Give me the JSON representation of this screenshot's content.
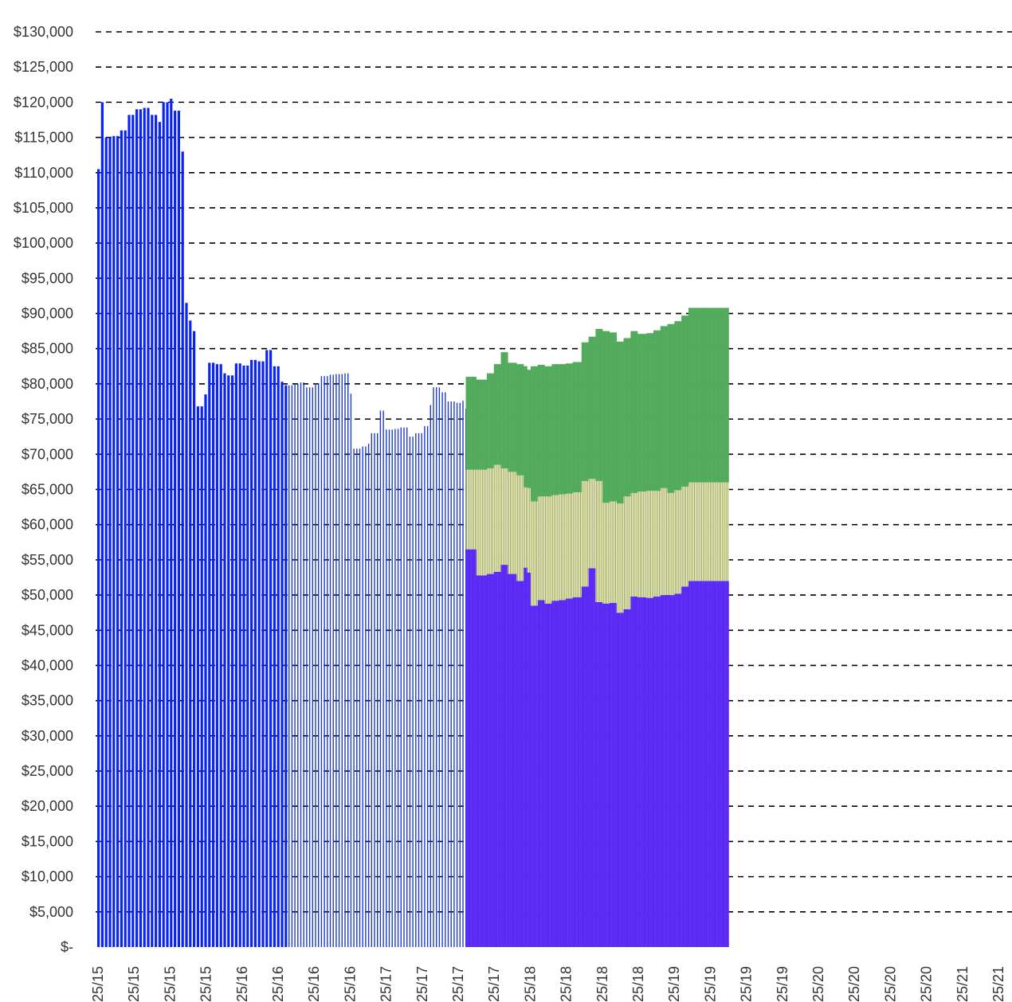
{
  "chart_data": {
    "type": "bar",
    "title": "",
    "xlabel": "",
    "ylabel": "",
    "ylim": [
      0,
      130000
    ],
    "y_ticks": [
      "$-",
      "$5,000",
      "$10,000",
      "$15,000",
      "$20,000",
      "$25,000",
      "$30,000",
      "$35,000",
      "$40,000",
      "$45,000",
      "$50,000",
      "$55,000",
      "$60,000",
      "$65,000",
      "$70,000",
      "$75,000",
      "$80,000",
      "$85,000",
      "$90,000",
      "$95,000",
      "$100,000",
      "$105,000",
      "$110,000",
      "$115,000",
      "$120,000",
      "$125,000",
      "$130,000"
    ],
    "x_ticks": [
      "25/15",
      "25/15",
      "25/15",
      "25/15",
      "25/16",
      "25/16",
      "25/16",
      "25/16",
      "25/17",
      "25/17",
      "25/17",
      "25/17",
      "25/18",
      "25/18",
      "25/18",
      "25/18",
      "25/19",
      "25/19",
      "25/19",
      "25/19",
      "25/20",
      "25/20",
      "25/20",
      "25/20",
      "25/21",
      "25/21",
      "25/21"
    ],
    "grid": "horizontal dashed",
    "colors": {
      "total_solid": "#0a24f5",
      "total_hatched": "#1f3cc8",
      "bottom": "#5b2bf5",
      "middle": "#8c9a3c",
      "middle_fill": "#f5f5dc",
      "top": "#52ab5c"
    },
    "total_series": [
      {
        "x": 0.0,
        "y": 110500
      },
      {
        "x": 0.1,
        "y": 120000
      },
      {
        "x": 0.15,
        "y": 114000
      },
      {
        "x": 0.2,
        "y": 115000
      },
      {
        "x": 0.4,
        "y": 115200
      },
      {
        "x": 0.6,
        "y": 116000
      },
      {
        "x": 0.8,
        "y": 118200
      },
      {
        "x": 1.0,
        "y": 119000
      },
      {
        "x": 1.2,
        "y": 119200
      },
      {
        "x": 1.4,
        "y": 118200
      },
      {
        "x": 1.6,
        "y": 117200
      },
      {
        "x": 1.8,
        "y": 120000
      },
      {
        "x": 2.0,
        "y": 120500
      },
      {
        "x": 2.1,
        "y": 118800
      },
      {
        "x": 2.3,
        "y": 113000
      },
      {
        "x": 2.35,
        "y": 91500
      },
      {
        "x": 2.45,
        "y": 89000
      },
      {
        "x": 2.6,
        "y": 87500
      },
      {
        "x": 2.7,
        "y": 76800
      },
      {
        "x": 2.9,
        "y": 78500
      },
      {
        "x": 3.0,
        "y": 83000
      },
      {
        "x": 3.2,
        "y": 82800
      },
      {
        "x": 3.4,
        "y": 81500
      },
      {
        "x": 3.6,
        "y": 81200
      },
      {
        "x": 3.8,
        "y": 82900
      },
      {
        "x": 4.0,
        "y": 82600
      },
      {
        "x": 4.2,
        "y": 83400
      },
      {
        "x": 4.4,
        "y": 83200
      },
      {
        "x": 4.6,
        "y": 84800
      },
      {
        "x": 4.8,
        "y": 82500
      },
      {
        "x": 5.0,
        "y": 80300
      },
      {
        "x": 5.2,
        "y": 79800
      },
      {
        "x": 5.4,
        "y": 80000
      },
      {
        "x": 5.6,
        "y": 80200
      },
      {
        "x": 5.8,
        "y": 79500
      },
      {
        "x": 6.0,
        "y": 80100
      },
      {
        "x": 6.2,
        "y": 81100
      },
      {
        "x": 6.4,
        "y": 81300
      },
      {
        "x": 6.6,
        "y": 81400
      },
      {
        "x": 6.8,
        "y": 81500
      },
      {
        "x": 7.0,
        "y": 78600
      },
      {
        "x": 7.1,
        "y": 70800
      },
      {
        "x": 7.3,
        "y": 71100
      },
      {
        "x": 7.5,
        "y": 71500
      },
      {
        "x": 7.6,
        "y": 73000
      },
      {
        "x": 7.8,
        "y": 76200
      },
      {
        "x": 8.0,
        "y": 73500
      },
      {
        "x": 8.2,
        "y": 73600
      },
      {
        "x": 8.4,
        "y": 73800
      },
      {
        "x": 8.6,
        "y": 72500
      },
      {
        "x": 8.8,
        "y": 73000
      },
      {
        "x": 9.0,
        "y": 74000
      },
      {
        "x": 9.2,
        "y": 77000
      },
      {
        "x": 9.3,
        "y": 79500
      },
      {
        "x": 9.5,
        "y": 78800
      },
      {
        "x": 9.7,
        "y": 77500
      },
      {
        "x": 9.9,
        "y": 77300
      },
      {
        "x": 10.1,
        "y": 77600
      },
      {
        "x": 10.2,
        "y": 76500
      }
    ],
    "stack_series": [
      {
        "x": 10.3,
        "bottom": 56500,
        "middle": 11300,
        "top": 13200
      },
      {
        "x": 10.5,
        "bottom": 52800,
        "middle": 15000,
        "top": 12800
      },
      {
        "x": 10.8,
        "bottom": 53000,
        "middle": 15000,
        "top": 13500
      },
      {
        "x": 11.0,
        "bottom": 53300,
        "middle": 15200,
        "top": 14300
      },
      {
        "x": 11.2,
        "bottom": 54300,
        "middle": 13700,
        "top": 16500
      },
      {
        "x": 11.4,
        "bottom": 53000,
        "middle": 14500,
        "top": 15500
      },
      {
        "x": 11.6,
        "bottom": 52000,
        "middle": 15000,
        "top": 15800
      },
      {
        "x": 11.8,
        "bottom": 53900,
        "middle": 11400,
        "top": 17200
      },
      {
        "x": 11.9,
        "bottom": 53200,
        "middle": 12000,
        "top": 16800
      },
      {
        "x": 12.0,
        "bottom": 48500,
        "middle": 14800,
        "top": 19200
      },
      {
        "x": 12.2,
        "bottom": 49300,
        "middle": 14700,
        "top": 18700
      },
      {
        "x": 12.4,
        "bottom": 48800,
        "middle": 15200,
        "top": 18500
      },
      {
        "x": 12.6,
        "bottom": 49200,
        "middle": 15000,
        "top": 18600
      },
      {
        "x": 12.8,
        "bottom": 49300,
        "middle": 15000,
        "top": 18500
      },
      {
        "x": 13.0,
        "bottom": 49500,
        "middle": 14900,
        "top": 18500
      },
      {
        "x": 13.2,
        "bottom": 49700,
        "middle": 14900,
        "top": 18500
      },
      {
        "x": 13.4,
        "bottom": 51200,
        "middle": 15000,
        "top": 19700
      },
      {
        "x": 13.6,
        "bottom": 53800,
        "middle": 12700,
        "top": 20200
      },
      {
        "x": 13.8,
        "bottom": 49000,
        "middle": 17200,
        "top": 21600
      },
      {
        "x": 14.0,
        "bottom": 48800,
        "middle": 14300,
        "top": 24400
      },
      {
        "x": 14.2,
        "bottom": 48900,
        "middle": 14400,
        "top": 24000
      },
      {
        "x": 14.4,
        "bottom": 47500,
        "middle": 15500,
        "top": 23000
      },
      {
        "x": 14.6,
        "bottom": 48000,
        "middle": 16000,
        "top": 22500
      },
      {
        "x": 14.8,
        "bottom": 49800,
        "middle": 14700,
        "top": 23000
      },
      {
        "x": 15.0,
        "bottom": 49700,
        "middle": 15000,
        "top": 22400
      },
      {
        "x": 15.2,
        "bottom": 49600,
        "middle": 15200,
        "top": 22400
      },
      {
        "x": 15.4,
        "bottom": 49800,
        "middle": 15000,
        "top": 22800
      },
      {
        "x": 15.6,
        "bottom": 50000,
        "middle": 15200,
        "top": 23000
      },
      {
        "x": 15.8,
        "bottom": 50000,
        "middle": 14500,
        "top": 24000
      },
      {
        "x": 16.0,
        "bottom": 50200,
        "middle": 14700,
        "top": 24000
      },
      {
        "x": 16.2,
        "bottom": 51200,
        "middle": 14200,
        "top": 24300
      },
      {
        "x": 16.4,
        "bottom": 52000,
        "middle": 14000,
        "top": 24800
      }
    ]
  }
}
